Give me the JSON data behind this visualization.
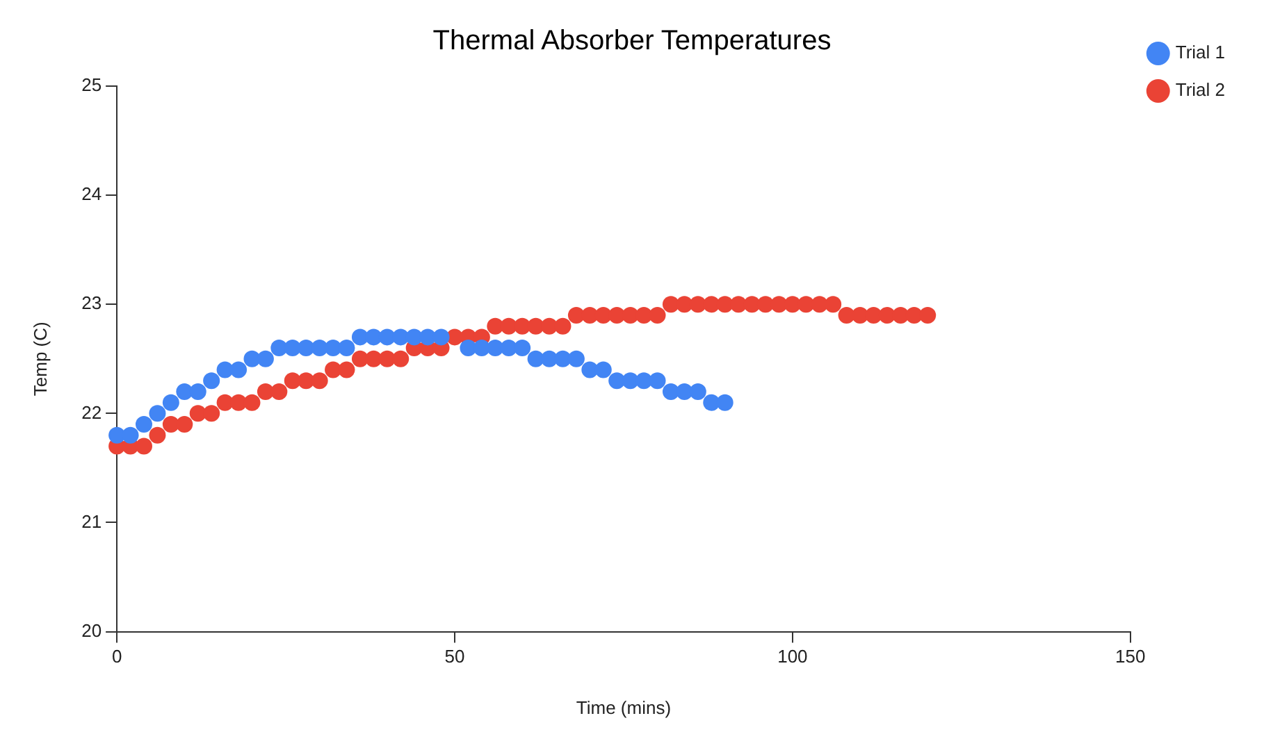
{
  "chart_data": {
    "type": "scatter",
    "title": "Thermal Absorber Temperatures",
    "xlabel": "Time (mins)",
    "ylabel": "Temp (C)",
    "xlim": [
      0,
      150
    ],
    "xticks": [
      0,
      50,
      100,
      150
    ],
    "ylim": [
      20,
      25
    ],
    "yticks": [
      20,
      21,
      22,
      23,
      24,
      25
    ],
    "grid": false,
    "legend": "top right",
    "marker": "circle",
    "series": [
      {
        "name": "Trial 1",
        "color": "#4285f4",
        "x": [
          0,
          2,
          4,
          6,
          8,
          10,
          12,
          14,
          16,
          18,
          20,
          22,
          24,
          26,
          28,
          30,
          32,
          34,
          36,
          38,
          40,
          42,
          44,
          46,
          48,
          50,
          52,
          54,
          56,
          58,
          60,
          62,
          64,
          66,
          68,
          70,
          72,
          74,
          76,
          78,
          80,
          82,
          84,
          86,
          88,
          90
        ],
        "values": [
          21.8,
          21.8,
          21.9,
          22.0,
          22.1,
          22.2,
          22.2,
          22.3,
          22.4,
          22.4,
          22.5,
          22.5,
          22.6,
          22.6,
          22.6,
          22.6,
          22.6,
          22.6,
          22.7,
          22.7,
          22.7,
          22.7,
          22.7,
          22.7,
          22.7,
          null,
          22.6,
          22.6,
          22.6,
          22.6,
          22.6,
          22.5,
          22.5,
          22.5,
          22.5,
          22.4,
          22.4,
          22.3,
          22.3,
          22.3,
          22.3,
          22.2,
          22.2,
          22.2,
          22.1,
          22.1
        ]
      },
      {
        "name": "Trial 2",
        "color": "#ea4335",
        "x": [
          0,
          2,
          4,
          6,
          8,
          10,
          12,
          14,
          16,
          18,
          20,
          22,
          24,
          26,
          28,
          30,
          32,
          34,
          36,
          38,
          40,
          42,
          44,
          46,
          48,
          50,
          52,
          54,
          56,
          58,
          60,
          62,
          64,
          66,
          68,
          70,
          72,
          74,
          76,
          78,
          80,
          82,
          84,
          86,
          88,
          90,
          92,
          94,
          96,
          98,
          100,
          102,
          104,
          106,
          108,
          110,
          112,
          114,
          116,
          118,
          120
        ],
        "values": [
          21.7,
          21.7,
          21.7,
          21.8,
          21.9,
          21.9,
          22.0,
          22.0,
          22.1,
          22.1,
          22.1,
          22.2,
          22.2,
          22.3,
          22.3,
          22.3,
          22.4,
          22.4,
          22.5,
          22.5,
          22.5,
          22.5,
          22.6,
          22.6,
          22.6,
          22.7,
          22.7,
          22.7,
          22.8,
          22.8,
          22.8,
          22.8,
          22.8,
          22.8,
          22.9,
          22.9,
          22.9,
          22.9,
          22.9,
          22.9,
          22.9,
          23.0,
          23.0,
          23.0,
          23.0,
          23.0,
          23.0,
          23.0,
          23.0,
          23.0,
          23.0,
          23.0,
          23.0,
          23.0,
          22.9,
          22.9,
          22.9,
          22.9,
          22.9,
          22.9,
          22.9
        ]
      }
    ]
  }
}
